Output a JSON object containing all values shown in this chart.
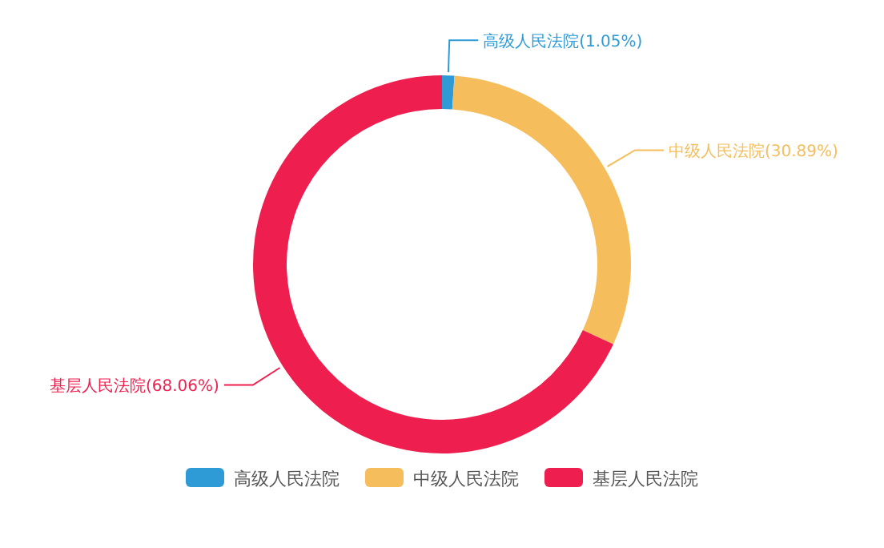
{
  "chart_data": {
    "type": "donut",
    "categories": [
      "高级人民法院",
      "中级人民法院",
      "基层人民法院"
    ],
    "values": [
      1.05,
      30.89,
      68.06
    ],
    "colors": [
      "#2e9bd6",
      "#f5bd5c",
      "#ee1f4f"
    ],
    "value_labels": [
      "高级人民法院(1.05%)",
      "中级人民法院(30.89%)",
      "基层人民法院(68.06%)"
    ],
    "legend": "bottom"
  }
}
